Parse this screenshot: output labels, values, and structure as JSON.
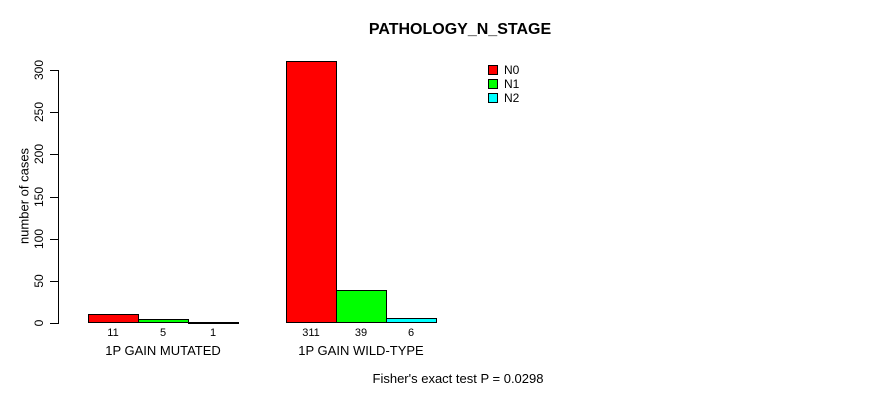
{
  "chart_data": {
    "type": "bar",
    "title": "PATHOLOGY_N_STAGE",
    "ylabel": "number of cases",
    "xlabel": "",
    "ylim": [
      0,
      300
    ],
    "yticks": [
      0,
      50,
      100,
      150,
      200,
      250,
      300
    ],
    "categories": [
      "1P GAIN MUTATED",
      "1P GAIN WILD-TYPE"
    ],
    "series": [
      {
        "name": "N0",
        "color": "#ff0000",
        "values": [
          11,
          311
        ]
      },
      {
        "name": "N1",
        "color": "#00ff00",
        "values": [
          5,
          39
        ]
      },
      {
        "name": "N2",
        "color": "#00ffff",
        "values": [
          1,
          6
        ]
      }
    ],
    "bar_value_labels": [
      [
        "11",
        "5",
        "1"
      ],
      [
        "311",
        "39",
        "6"
      ]
    ],
    "grid": false,
    "legend_position": "top-right",
    "footnote": "Fisher's exact test P = 0.0298"
  }
}
